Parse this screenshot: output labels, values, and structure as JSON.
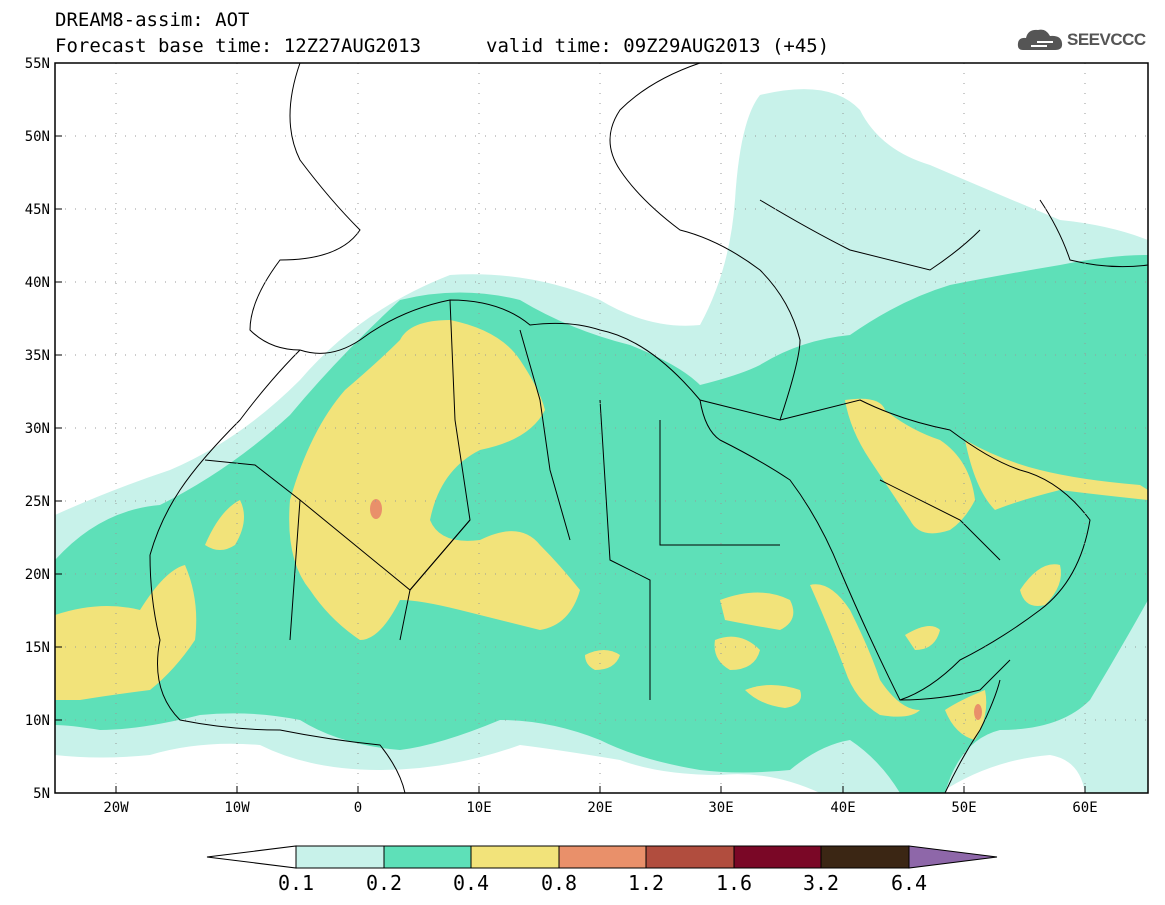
{
  "header": {
    "title": "DREAM8-assim: AOT",
    "base_time": "Forecast base time: 12Z27AUG2013",
    "valid_time": "valid time: 09Z29AUG2013 (+45)",
    "logo_text": "SEEVCCC"
  },
  "map": {
    "lat_labels": [
      "55N",
      "50N",
      "45N",
      "40N",
      "35N",
      "30N",
      "25N",
      "20N",
      "15N",
      "10N",
      "5N"
    ],
    "lon_labels": [
      "20W",
      "10W",
      "0",
      "10E",
      "20E",
      "30E",
      "40E",
      "50E",
      "60E"
    ],
    "lat_range": [
      5,
      55
    ],
    "lon_range": [
      -25,
      65
    ],
    "grid": "dotted"
  },
  "colorbar": {
    "labels": [
      "0.1",
      "0.2",
      "0.4",
      "0.8",
      "1.2",
      "1.6",
      "3.2",
      "6.4"
    ],
    "colors": [
      "#c8f2ea",
      "#5ee0b8",
      "#f2e37a",
      "#e9906a",
      "#b14d3e",
      "#7a0726",
      "#3b2614",
      "#8e67a9"
    ]
  }
}
